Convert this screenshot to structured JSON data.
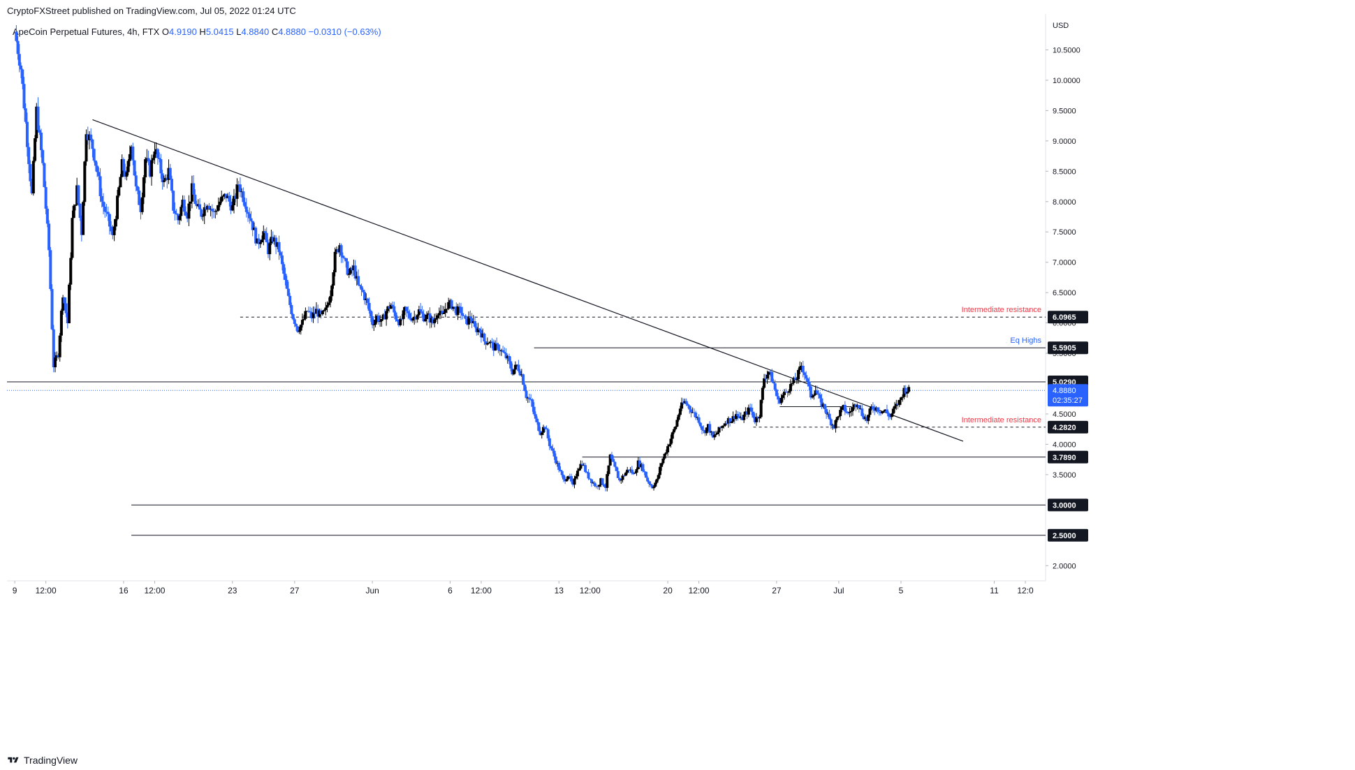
{
  "header": {
    "publisher": "CryptoFXStreet published on TradingView.com, Jul 05, 2022 01:24 UTC"
  },
  "legend": {
    "symbol": "ApeCoin Perpetual Futures, 4h, FTX",
    "open_label": "O",
    "open": "4.9190",
    "high_label": "H",
    "high": "5.0415",
    "low_label": "L",
    "low": "4.8840",
    "close_label": "C",
    "close": "4.8880",
    "change": "−0.0310 (−0.63%)"
  },
  "footer": {
    "brand": "TradingView"
  },
  "colors": {
    "up": "#000000",
    "down": "#2962ff",
    "resistance_label": "#f23645",
    "eq_label": "#2962ff",
    "tag_bg": "#131722",
    "current_bg": "#2962ff"
  },
  "chart_data": {
    "type": "candlestick",
    "currency": "USD",
    "y_ticks": [
      "10.5000",
      "10.0000",
      "9.5000",
      "9.0000",
      "8.5000",
      "8.0000",
      "7.5000",
      "7.0000",
      "6.5000",
      "6.0000",
      "5.5000",
      "4.5000",
      "4.0000",
      "3.5000",
      "2.0000"
    ],
    "y_range": [
      1.75,
      11.0
    ],
    "x_ticks": [
      {
        "label": "9",
        "x": 0
      },
      {
        "label": "12:00",
        "x": 2
      },
      {
        "label": "16",
        "x": 7
      },
      {
        "label": "12:00",
        "x": 9
      },
      {
        "label": "23",
        "x": 14
      },
      {
        "label": "27",
        "x": 18
      },
      {
        "label": "Jun",
        "x": 23
      },
      {
        "label": "6",
        "x": 28
      },
      {
        "label": "12:00",
        "x": 30
      },
      {
        "label": "13",
        "x": 35
      },
      {
        "label": "12:00",
        "x": 37
      },
      {
        "label": "20",
        "x": 42
      },
      {
        "label": "12:00",
        "x": 44
      },
      {
        "label": "27",
        "x": 49
      },
      {
        "label": "Jul",
        "x": 53
      },
      {
        "label": "5",
        "x": 57
      },
      {
        "label": "11",
        "x": 63
      },
      {
        "label": "12:0",
        "x": 65
      }
    ],
    "x_range": [
      -0.5,
      66.3
    ],
    "levels": [
      {
        "price": "6.0965",
        "value": 6.0965,
        "style": "dashed",
        "x_start": 14.5,
        "label": "Intermediate resistance",
        "label_color": "#f23645"
      },
      {
        "price": "5.5905",
        "value": 5.5905,
        "style": "solid",
        "x_start": 33.4,
        "label": "Eq Highs",
        "label_color": "#2962ff"
      },
      {
        "price": "5.0290",
        "value": 5.029,
        "style": "solid",
        "x_start": -0.5,
        "label": "",
        "label_color": ""
      },
      {
        "price": "4.2820",
        "value": 4.282,
        "style": "dashed",
        "x_start": 47.5,
        "label": "Intermediate resistance",
        "label_color": "#f23645"
      },
      {
        "price": "3.7890",
        "value": 3.789,
        "style": "solid",
        "x_start": 36.5,
        "label": "",
        "label_color": ""
      },
      {
        "price": "3.0000",
        "value": 3.0,
        "style": "solid",
        "x_start": 7.5,
        "label": "",
        "label_color": ""
      },
      {
        "price": "2.5000",
        "value": 2.5,
        "style": "solid",
        "x_start": 7.5,
        "label": "",
        "label_color": ""
      }
    ],
    "current_price": {
      "price": "4.8880",
      "value": 4.888,
      "countdown": "02:35:27"
    },
    "trendline": {
      "x1": 5,
      "y1": 9.35,
      "x2": 61,
      "y2": 4.05
    },
    "minor_lines": [
      {
        "x1": 49.2,
        "y1": 4.62,
        "x2": 53.8,
        "y2": 4.62
      }
    ],
    "close_path": [
      [
        0,
        10.8
      ],
      [
        0.4,
        10.2
      ],
      [
        0.8,
        9.0
      ],
      [
        1.1,
        8.1
      ],
      [
        1.4,
        9.5
      ],
      [
        1.8,
        8.6
      ],
      [
        2.2,
        7.2
      ],
      [
        2.5,
        5.3
      ],
      [
        2.8,
        5.5
      ],
      [
        3.1,
        6.5
      ],
      [
        3.4,
        6.0
      ],
      [
        3.7,
        7.7
      ],
      [
        4.0,
        8.2
      ],
      [
        4.3,
        7.5
      ],
      [
        4.6,
        9.2
      ],
      [
        5.0,
        8.9
      ],
      [
        5.3,
        8.5
      ],
      [
        5.6,
        8.0
      ],
      [
        6.0,
        7.7
      ],
      [
        6.3,
        7.4
      ],
      [
        6.6,
        8.0
      ],
      [
        6.9,
        8.6
      ],
      [
        7.2,
        8.4
      ],
      [
        7.5,
        9.0
      ],
      [
        7.8,
        8.2
      ],
      [
        8.1,
        7.9
      ],
      [
        8.4,
        8.7
      ],
      [
        8.7,
        8.5
      ],
      [
        9.0,
        8.9
      ],
      [
        9.3,
        8.6
      ],
      [
        9.6,
        8.3
      ],
      [
        9.9,
        8.5
      ],
      [
        10.2,
        7.9
      ],
      [
        10.5,
        7.7
      ],
      [
        10.8,
        8.0
      ],
      [
        11.1,
        7.8
      ],
      [
        11.4,
        8.2
      ],
      [
        11.7,
        7.9
      ],
      [
        12.0,
        7.8
      ],
      [
        12.4,
        8.0
      ],
      [
        12.8,
        7.8
      ],
      [
        13.2,
        8.0
      ],
      [
        13.6,
        8.1
      ],
      [
        14.0,
        7.9
      ],
      [
        14.4,
        8.3
      ],
      [
        14.8,
        8.0
      ],
      [
        15.2,
        7.7
      ],
      [
        15.6,
        7.3
      ],
      [
        16.0,
        7.5
      ],
      [
        16.3,
        7.2
      ],
      [
        16.6,
        7.4
      ],
      [
        17.0,
        7.2
      ],
      [
        17.3,
        6.8
      ],
      [
        17.6,
        6.4
      ],
      [
        17.9,
        6.1
      ],
      [
        18.2,
        5.9
      ],
      [
        18.5,
        6.0
      ],
      [
        18.8,
        6.2
      ],
      [
        19.1,
        6.1
      ],
      [
        19.4,
        6.2
      ],
      [
        19.7,
        6.1
      ],
      [
        20.0,
        6.2
      ],
      [
        20.3,
        6.5
      ],
      [
        20.6,
        7.1
      ],
      [
        20.9,
        7.3
      ],
      [
        21.2,
        7.0
      ],
      [
        21.5,
        6.8
      ],
      [
        21.8,
        6.9
      ],
      [
        22.1,
        6.6
      ],
      [
        22.4,
        6.5
      ],
      [
        22.7,
        6.3
      ],
      [
        23.0,
        6.0
      ],
      [
        23.3,
        6.1
      ],
      [
        23.6,
        6.0
      ],
      [
        23.9,
        6.2
      ],
      [
        24.2,
        6.3
      ],
      [
        24.5,
        6.1
      ],
      [
        24.8,
        6.0
      ],
      [
        25.1,
        6.2
      ],
      [
        25.4,
        6.1
      ],
      [
        25.7,
        6.1
      ],
      [
        26.0,
        6.2
      ],
      [
        26.3,
        6.1
      ],
      [
        26.6,
        6.1
      ],
      [
        26.9,
        6.0
      ],
      [
        27.2,
        6.2
      ],
      [
        27.5,
        6.1
      ],
      [
        27.8,
        6.3
      ],
      [
        28.1,
        6.3
      ],
      [
        28.4,
        6.2
      ],
      [
        28.7,
        6.2
      ],
      [
        29.0,
        6.0
      ],
      [
        29.3,
        6.1
      ],
      [
        29.6,
        5.9
      ],
      [
        29.9,
        5.9
      ],
      [
        30.2,
        5.7
      ],
      [
        30.5,
        5.7
      ],
      [
        30.8,
        5.6
      ],
      [
        31.1,
        5.6
      ],
      [
        31.4,
        5.5
      ],
      [
        31.7,
        5.4
      ],
      [
        32.0,
        5.2
      ],
      [
        32.3,
        5.3
      ],
      [
        32.6,
        5.15
      ],
      [
        32.9,
        4.8
      ],
      [
        33.2,
        4.7
      ],
      [
        33.5,
        4.4
      ],
      [
        33.8,
        4.2
      ],
      [
        34.1,
        4.3
      ],
      [
        34.4,
        4.0
      ],
      [
        34.7,
        3.8
      ],
      [
        35.0,
        3.6
      ],
      [
        35.3,
        3.4
      ],
      [
        35.6,
        3.5
      ],
      [
        35.9,
        3.3
      ],
      [
        36.2,
        3.6
      ],
      [
        36.5,
        3.7
      ],
      [
        36.8,
        3.5
      ],
      [
        37.1,
        3.4
      ],
      [
        37.4,
        3.3
      ],
      [
        37.7,
        3.4
      ],
      [
        38.0,
        3.3
      ],
      [
        38.3,
        3.8
      ],
      [
        38.6,
        3.6
      ],
      [
        38.9,
        3.4
      ],
      [
        39.2,
        3.5
      ],
      [
        39.5,
        3.6
      ],
      [
        39.8,
        3.5
      ],
      [
        40.1,
        3.7
      ],
      [
        40.4,
        3.6
      ],
      [
        40.7,
        3.4
      ],
      [
        41.0,
        3.3
      ],
      [
        41.3,
        3.4
      ],
      [
        41.6,
        3.7
      ],
      [
        41.9,
        3.9
      ],
      [
        42.2,
        4.1
      ],
      [
        42.5,
        4.3
      ],
      [
        42.8,
        4.6
      ],
      [
        43.1,
        4.7
      ],
      [
        43.4,
        4.6
      ],
      [
        43.7,
        4.5
      ],
      [
        44.0,
        4.4
      ],
      [
        44.3,
        4.2
      ],
      [
        44.6,
        4.3
      ],
      [
        44.9,
        4.1
      ],
      [
        45.2,
        4.2
      ],
      [
        45.5,
        4.3
      ],
      [
        45.8,
        4.4
      ],
      [
        46.1,
        4.4
      ],
      [
        46.4,
        4.5
      ],
      [
        46.7,
        4.4
      ],
      [
        47.0,
        4.5
      ],
      [
        47.3,
        4.6
      ],
      [
        47.6,
        4.4
      ],
      [
        47.9,
        4.5
      ],
      [
        48.2,
        5.1
      ],
      [
        48.5,
        5.2
      ],
      [
        48.8,
        5.0
      ],
      [
        49.1,
        4.7
      ],
      [
        49.4,
        4.8
      ],
      [
        49.7,
        4.9
      ],
      [
        50.0,
        5.0
      ],
      [
        50.3,
        5.1
      ],
      [
        50.6,
        5.3
      ],
      [
        50.9,
        5.1
      ],
      [
        51.2,
        4.8
      ],
      [
        51.5,
        4.9
      ],
      [
        51.8,
        4.7
      ],
      [
        52.1,
        4.6
      ],
      [
        52.4,
        4.4
      ],
      [
        52.7,
        4.3
      ],
      [
        53.0,
        4.5
      ],
      [
        53.3,
        4.6
      ],
      [
        53.6,
        4.5
      ],
      [
        53.9,
        4.6
      ],
      [
        54.2,
        4.7
      ],
      [
        54.5,
        4.5
      ],
      [
        54.8,
        4.4
      ],
      [
        55.1,
        4.6
      ],
      [
        55.4,
        4.6
      ],
      [
        55.7,
        4.55
      ],
      [
        56.0,
        4.55
      ],
      [
        56.3,
        4.45
      ],
      [
        56.6,
        4.6
      ],
      [
        56.9,
        4.7
      ],
      [
        57.2,
        4.9
      ],
      [
        57.5,
        4.89
      ]
    ]
  }
}
